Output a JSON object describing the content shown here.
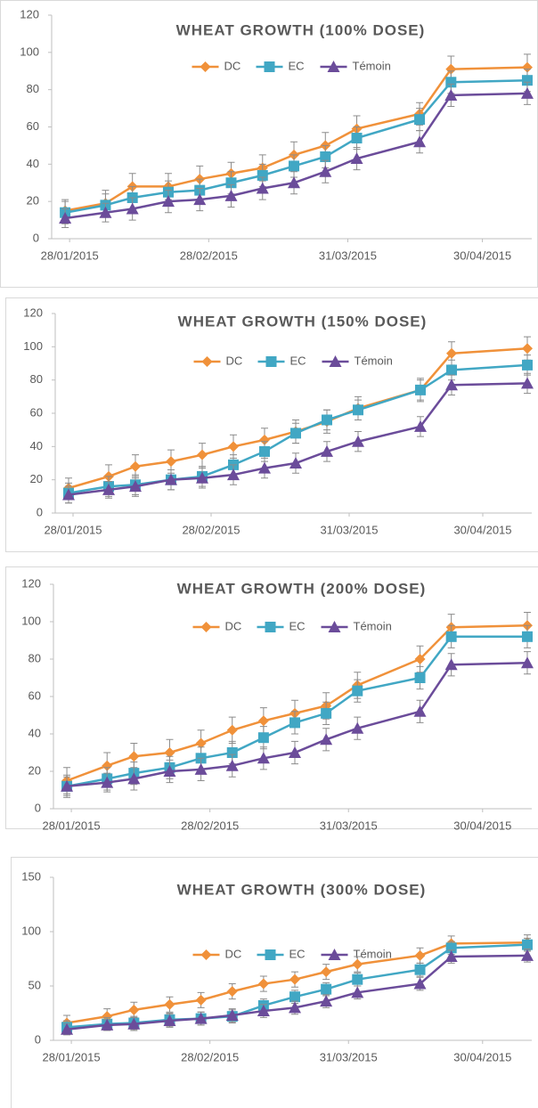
{
  "chart_data": [
    {
      "type": "line",
      "title": "WHEAT GROWTH (100% DOSE)",
      "x": [
        "27/01/2015",
        "05/02/2015",
        "11/02/2015",
        "19/02/2015",
        "26/02/2015",
        "05/03/2015",
        "12/03/2015",
        "19/03/2015",
        "26/03/2015",
        "02/04/2015",
        "16/04/2015",
        "23/04/2015",
        "10/05/2015"
      ],
      "xlim": [
        "24/01/2015",
        "11/05/2015"
      ],
      "xticks": [
        "28/01/2015",
        "28/02/2015",
        "31/03/2015",
        "30/04/2015"
      ],
      "ylim": [
        0,
        120
      ],
      "yticks": [
        0,
        20,
        40,
        60,
        80,
        100,
        120
      ],
      "grid": false,
      "series": [
        {
          "name": "DC",
          "color": "#f0913a",
          "marker": "diamond",
          "values": [
            15,
            19,
            28,
            28,
            32,
            35,
            38,
            45,
            50,
            59,
            67,
            91,
            92
          ],
          "errors": [
            6,
            7,
            7,
            7,
            7,
            6,
            7,
            7,
            7,
            7,
            6,
            7,
            7
          ]
        },
        {
          "name": "EC",
          "color": "#41a7c4",
          "marker": "square",
          "values": [
            14,
            18,
            22,
            25,
            26,
            30,
            34,
            39,
            44,
            54,
            64,
            84,
            85
          ],
          "errors": [
            6,
            6,
            6,
            6,
            6,
            6,
            6,
            6,
            6,
            6,
            6,
            6,
            6
          ]
        },
        {
          "name": "Témoin",
          "color": "#6b4c9a",
          "marker": "triangle",
          "values": [
            11,
            14,
            16,
            20,
            21,
            23,
            27,
            30,
            36,
            43,
            52,
            77,
            78
          ],
          "errors": [
            5,
            5,
            6,
            6,
            6,
            6,
            6,
            6,
            6,
            6,
            6,
            6,
            6
          ]
        }
      ]
    },
    {
      "type": "line",
      "title": "WHEAT GROWTH (150% DOSE)",
      "x": [
        "27/01/2015",
        "05/02/2015",
        "11/02/2015",
        "19/02/2015",
        "26/02/2015",
        "05/03/2015",
        "12/03/2015",
        "19/03/2015",
        "26/03/2015",
        "02/04/2015",
        "16/04/2015",
        "23/04/2015",
        "10/05/2015"
      ],
      "xlim": [
        "24/01/2015",
        "11/05/2015"
      ],
      "xticks": [
        "28/01/2015",
        "28/02/2015",
        "31/03/2015",
        "30/04/2015"
      ],
      "ylim": [
        0,
        120
      ],
      "yticks": [
        0,
        20,
        40,
        60,
        80,
        100,
        120
      ],
      "grid": false,
      "series": [
        {
          "name": "DC",
          "color": "#f0913a",
          "marker": "diamond",
          "values": [
            15,
            22,
            28,
            31,
            35,
            40,
            44,
            49,
            55,
            63,
            74,
            96,
            99
          ],
          "errors": [
            6,
            7,
            7,
            7,
            7,
            7,
            7,
            7,
            7,
            7,
            7,
            7,
            7
          ]
        },
        {
          "name": "EC",
          "color": "#41a7c4",
          "marker": "square",
          "values": [
            12,
            16,
            17,
            20,
            22,
            29,
            37,
            48,
            56,
            62,
            74,
            86,
            89
          ],
          "errors": [
            6,
            6,
            6,
            6,
            6,
            6,
            6,
            6,
            6,
            6,
            6,
            6,
            6
          ]
        },
        {
          "name": "Témoin",
          "color": "#6b4c9a",
          "marker": "triangle",
          "values": [
            11,
            14,
            16,
            20,
            21,
            23,
            27,
            30,
            37,
            43,
            52,
            77,
            78
          ],
          "errors": [
            5,
            5,
            6,
            6,
            6,
            6,
            6,
            6,
            6,
            6,
            6,
            6,
            6
          ]
        }
      ]
    },
    {
      "type": "line",
      "title": "WHEAT GROWTH (200% DOSE)",
      "x": [
        "27/01/2015",
        "05/02/2015",
        "11/02/2015",
        "19/02/2015",
        "26/02/2015",
        "05/03/2015",
        "12/03/2015",
        "19/03/2015",
        "26/03/2015",
        "02/04/2015",
        "16/04/2015",
        "23/04/2015",
        "10/05/2015"
      ],
      "xlim": [
        "24/01/2015",
        "11/05/2015"
      ],
      "xticks": [
        "28/01/2015",
        "28/02/2015",
        "31/03/2015",
        "30/04/2015"
      ],
      "ylim": [
        0,
        120
      ],
      "yticks": [
        0,
        20,
        40,
        60,
        80,
        100,
        120
      ],
      "grid": false,
      "series": [
        {
          "name": "DC",
          "color": "#f0913a",
          "marker": "diamond",
          "values": [
            15,
            23,
            28,
            30,
            35,
            42,
            47,
            51,
            55,
            66,
            80,
            97,
            98
          ],
          "errors": [
            7,
            7,
            7,
            7,
            7,
            7,
            7,
            7,
            7,
            7,
            7,
            7,
            7
          ]
        },
        {
          "name": "EC",
          "color": "#41a7c4",
          "marker": "square",
          "values": [
            12,
            16,
            19,
            22,
            27,
            30,
            38,
            46,
            51,
            63,
            70,
            92,
            92
          ],
          "errors": [
            6,
            6,
            6,
            6,
            6,
            6,
            6,
            6,
            6,
            6,
            6,
            6,
            6
          ]
        },
        {
          "name": "Témoin",
          "color": "#6b4c9a",
          "marker": "triangle",
          "values": [
            12,
            14,
            16,
            20,
            21,
            23,
            27,
            30,
            37,
            43,
            52,
            77,
            78
          ],
          "errors": [
            5,
            5,
            6,
            6,
            6,
            6,
            6,
            6,
            6,
            6,
            6,
            6,
            6
          ]
        }
      ]
    },
    {
      "type": "line",
      "title": "WHEAT GROWTH (300% DOSE)",
      "x": [
        "27/01/2015",
        "05/02/2015",
        "11/02/2015",
        "19/02/2015",
        "26/02/2015",
        "05/03/2015",
        "12/03/2015",
        "19/03/2015",
        "26/03/2015",
        "02/04/2015",
        "16/04/2015",
        "23/04/2015",
        "10/05/2015"
      ],
      "xlim": [
        "24/01/2015",
        "11/05/2015"
      ],
      "xticks": [
        "28/01/2015",
        "28/02/2015",
        "31/03/2015",
        "30/04/2015"
      ],
      "ylim": [
        0,
        150
      ],
      "yticks": [
        0,
        50,
        100,
        150
      ],
      "grid": false,
      "series": [
        {
          "name": "DC",
          "color": "#f0913a",
          "marker": "diamond",
          "values": [
            16,
            22,
            28,
            33,
            37,
            45,
            52,
            56,
            63,
            70,
            78,
            89,
            90
          ],
          "errors": [
            7,
            7,
            7,
            7,
            7,
            7,
            7,
            7,
            7,
            7,
            7,
            7,
            7
          ]
        },
        {
          "name": "EC",
          "color": "#41a7c4",
          "marker": "square",
          "values": [
            12,
            15,
            16,
            19,
            20,
            22,
            32,
            40,
            47,
            56,
            65,
            85,
            88
          ],
          "errors": [
            6,
            6,
            6,
            6,
            6,
            6,
            6,
            6,
            6,
            6,
            6,
            6,
            6
          ]
        },
        {
          "name": "Témoin",
          "color": "#6b4c9a",
          "marker": "triangle",
          "values": [
            10,
            14,
            15,
            18,
            20,
            23,
            27,
            30,
            36,
            44,
            52,
            77,
            78
          ],
          "errors": [
            5,
            5,
            6,
            6,
            6,
            6,
            6,
            6,
            6,
            6,
            6,
            6,
            6
          ]
        }
      ]
    }
  ]
}
